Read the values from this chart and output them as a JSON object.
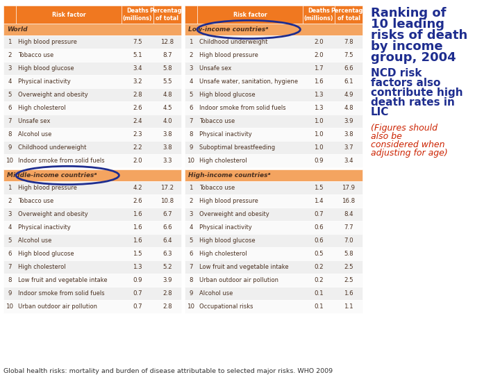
{
  "header_bg": "#F07820",
  "subheader_bg": "#F4A460",
  "row_bg1": "#EFEFEF",
  "row_bg2": "#FAFAFA",
  "circle_color": "#1E2D8F",
  "text_color": "#4A3020",
  "header_text": "#FFFFFF",
  "title_color": "#1E2D8F",
  "note_color": "#CC2200",
  "footnote_color": "#333333",
  "world": {
    "header": "World",
    "rows": [
      [
        1,
        "High blood pressure",
        "7.5",
        "12.8"
      ],
      [
        2,
        "Tobacco use",
        "5.1",
        "8.7"
      ],
      [
        3,
        "High blood glucose",
        "3.4",
        "5.8"
      ],
      [
        4,
        "Physical inactivity",
        "3.2",
        "5.5"
      ],
      [
        5,
        "Overweight and obesity",
        "2.8",
        "4.8"
      ],
      [
        6,
        "High cholesterol",
        "2.6",
        "4.5"
      ],
      [
        7,
        "Unsafe sex",
        "2.4",
        "4.0"
      ],
      [
        8,
        "Alcohol use",
        "2.3",
        "3.8"
      ],
      [
        9,
        "Childhood underweight",
        "2.2",
        "3.8"
      ],
      [
        10,
        "Indoor smoke from solid fuels",
        "2.0",
        "3.3"
      ]
    ]
  },
  "low_income": {
    "header": "Low-income countriesᵃ",
    "rows": [
      [
        1,
        "Childhood underweight",
        "2.0",
        "7.8"
      ],
      [
        2,
        "High blood pressure",
        "2.0",
        "7.5"
      ],
      [
        3,
        "Unsafe sex",
        "1.7",
        "6.6"
      ],
      [
        4,
        "Unsafe water, sanitation, hygiene",
        "1.6",
        "6.1"
      ],
      [
        5,
        "High blood glucose",
        "1.3",
        "4.9"
      ],
      [
        6,
        "Indoor smoke from solid fuels",
        "1.3",
        "4.8"
      ],
      [
        7,
        "Tobacco use",
        "1.0",
        "3.9"
      ],
      [
        8,
        "Physical inactivity",
        "1.0",
        "3.8"
      ],
      [
        9,
        "Suboptimal breastfeeding",
        "1.0",
        "3.7"
      ],
      [
        10,
        "High cholesterol",
        "0.9",
        "3.4"
      ]
    ]
  },
  "middle_income": {
    "header": "Middle-income countriesᵃ",
    "rows": [
      [
        1,
        "High blood pressure",
        "4.2",
        "17.2"
      ],
      [
        2,
        "Tobacco use",
        "2.6",
        "10.8"
      ],
      [
        3,
        "Overweight and obesity",
        "1.6",
        "6.7"
      ],
      [
        4,
        "Physical inactivity",
        "1.6",
        "6.6"
      ],
      [
        5,
        "Alcohol use",
        "1.6",
        "6.4"
      ],
      [
        6,
        "High blood glucose",
        "1.5",
        "6.3"
      ],
      [
        7,
        "High cholesterol",
        "1.3",
        "5.2"
      ],
      [
        8,
        "Low fruit and vegetable intake",
        "0.9",
        "3.9"
      ],
      [
        9,
        "Indoor smoke from solid fuels",
        "0.7",
        "2.8"
      ],
      [
        10,
        "Urban outdoor air pollution",
        "0.7",
        "2.8"
      ]
    ]
  },
  "high_income": {
    "header": "High-income countriesᵃ",
    "rows": [
      [
        1,
        "Tobacco use",
        "1.5",
        "17.9"
      ],
      [
        2,
        "High blood pressure",
        "1.4",
        "16.8"
      ],
      [
        3,
        "Overweight and obesity",
        "0.7",
        "8.4"
      ],
      [
        4,
        "Physical inactivity",
        "0.6",
        "7.7"
      ],
      [
        5,
        "High blood glucose",
        "0.6",
        "7.0"
      ],
      [
        6,
        "High cholesterol",
        "0.5",
        "5.8"
      ],
      [
        7,
        "Low fruit and vegetable intake",
        "0.2",
        "2.5"
      ],
      [
        8,
        "Urban outdoor air pollution",
        "0.2",
        "2.5"
      ],
      [
        9,
        "Alcohol use",
        "0.1",
        "1.6"
      ],
      [
        10,
        "Occupational risks",
        "0.1",
        "1.1"
      ]
    ]
  },
  "title_lines": [
    "Ranking of",
    "10 leading",
    "risks of death",
    "by income",
    "group, 2004"
  ],
  "subtitle_lines": [
    "NCD risk",
    "factors also",
    "contribute high",
    "death rates in",
    "LIC"
  ],
  "note_lines": [
    "(Figures should",
    "also be",
    "considered when",
    "adjusting for age)"
  ],
  "footnote": "Global health risks: mortality and burden of disease attributable to selected major risks. WHO 2009"
}
